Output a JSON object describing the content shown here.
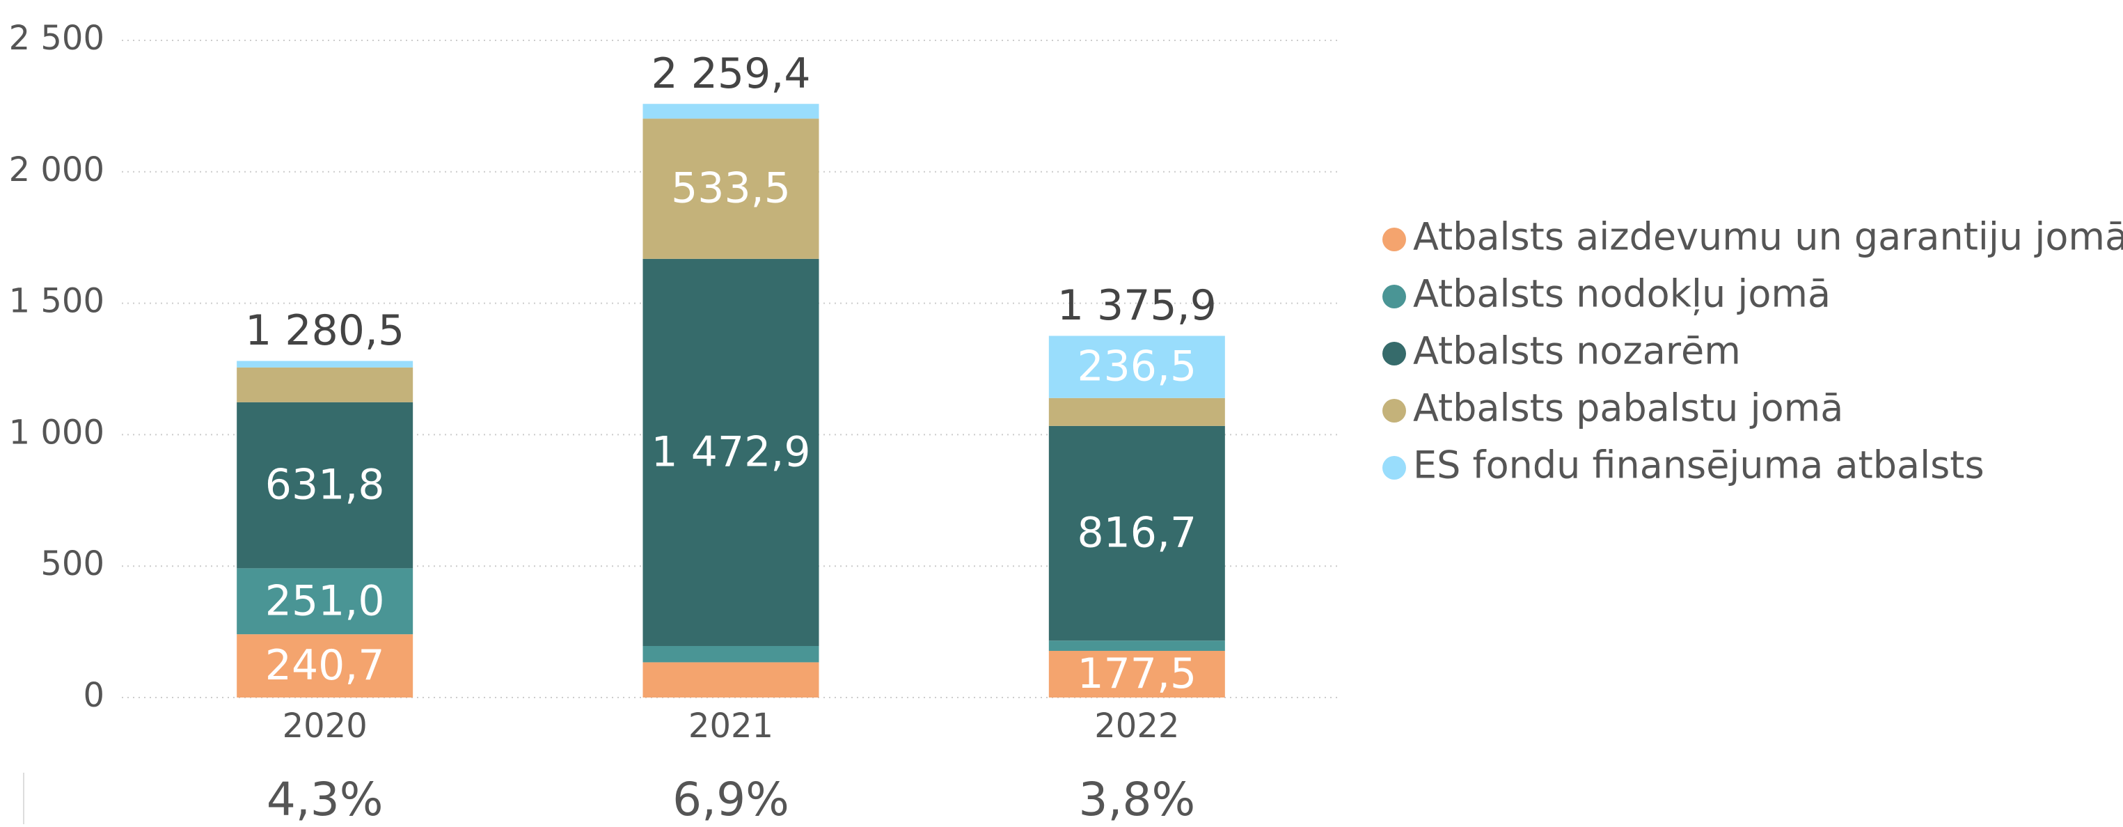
{
  "chart_data": {
    "type": "stacked_bar",
    "categories": [
      "2020",
      "2021",
      "2022"
    ],
    "series": [
      {
        "name": "Atbalsts aizdevumu un garantiju jomā",
        "color": "#f4a46e",
        "values": [
          240.7,
          134,
          177.5
        ],
        "value_labels": [
          "240,7",
          null,
          "177,5"
        ]
      },
      {
        "name": "Atbalsts nodokļu jomā",
        "color": "#4a9595",
        "values": [
          251.0,
          62,
          39
        ],
        "value_labels": [
          "251,0",
          null,
          null
        ]
      },
      {
        "name": "Atbalsts nozarēm",
        "color": "#366b6b",
        "values": [
          631.8,
          1472.9,
          816.7
        ],
        "value_labels": [
          "631,8",
          "1 472,9",
          "816,7"
        ]
      },
      {
        "name": "Atbalsts pabalstu jomā",
        "color": "#c4b27a",
        "values": [
          132,
          533.5,
          106.2
        ],
        "value_labels": [
          null,
          "533,5",
          null
        ]
      },
      {
        "name": "ES fondu finansējuma atbalsts",
        "color": "#99ddfc",
        "values": [
          25,
          56,
          236.5
        ],
        "value_labels": [
          null,
          null,
          "236,5"
        ]
      }
    ],
    "totals": [
      {
        "value": 1280.5,
        "label": "1 280,5"
      },
      {
        "value": 2259.4,
        "label": "2 259,4"
      },
      {
        "value": 1375.9,
        "label": "1 375,9"
      }
    ],
    "bottom_labels": [
      "4,3%",
      "6,9%",
      "3,8%"
    ],
    "ylim": [
      0,
      2500
    ],
    "yticks": [
      0,
      500,
      {
        "value": 1000,
        "label": "1 000"
      },
      {
        "value": 1500,
        "label": "1 500"
      },
      {
        "value": 2000,
        "label": "2 000"
      },
      {
        "value": 2500,
        "label": "2 500"
      }
    ],
    "grid": true,
    "legend": "right"
  }
}
